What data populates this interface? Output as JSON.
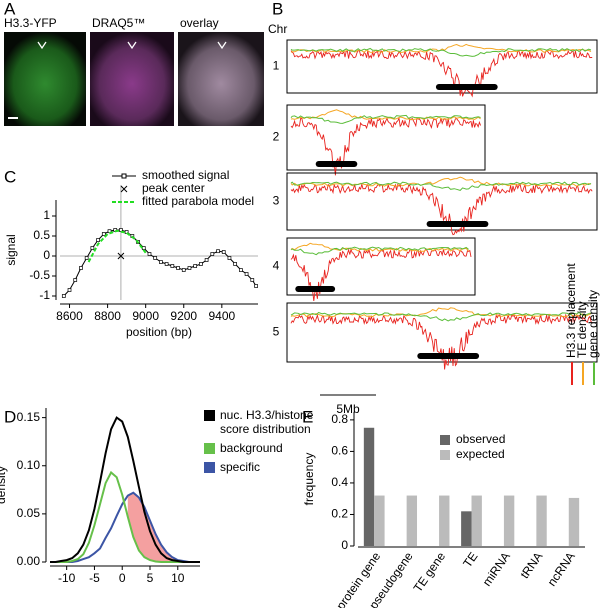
{
  "panel_a": {
    "label": "A",
    "channels": [
      "H3.3-YFP",
      "DRAQ5™",
      "overlay"
    ]
  },
  "panel_b": {
    "label": "B",
    "axis_label": "Chr",
    "chromosomes": [
      "1",
      "2",
      "3",
      "4",
      "5"
    ],
    "legend": [
      "H3.3 replacement",
      "TE density",
      "gene density"
    ],
    "scale": "5Mb"
  },
  "chart_data": [
    {
      "type": "line",
      "panel": "C",
      "xlabel": "position (bp)",
      "ylabel": "signal",
      "xlim": [
        8550,
        9590
      ],
      "ylim": [
        -1.1,
        1.4
      ],
      "xticks": [
        8600,
        8800,
        9000,
        9200,
        9400
      ],
      "yticks": [
        -1,
        -0.5,
        0,
        0.5,
        1
      ],
      "series": [
        {
          "name": "smoothed signal",
          "color": "#000000",
          "marker": "square",
          "x": [
            8570,
            8600,
            8630,
            8660,
            8690,
            8720,
            8750,
            8780,
            8810,
            8840,
            8870,
            8900,
            8930,
            8960,
            8990,
            9020,
            9050,
            9080,
            9110,
            9140,
            9170,
            9200,
            9230,
            9260,
            9290,
            9320,
            9350,
            9380,
            9410,
            9440,
            9470,
            9500,
            9530,
            9560,
            9580
          ],
          "values": [
            -1.0,
            -0.85,
            -0.6,
            -0.3,
            -0.05,
            0.2,
            0.4,
            0.55,
            0.62,
            0.65,
            0.65,
            0.6,
            0.5,
            0.35,
            0.2,
            0.05,
            -0.05,
            -0.15,
            -0.2,
            -0.25,
            -0.3,
            -0.35,
            -0.3,
            -0.25,
            -0.2,
            -0.1,
            0.05,
            0.12,
            0.1,
            -0.05,
            -0.2,
            -0.35,
            -0.45,
            -0.6,
            -0.75
          ]
        },
        {
          "name": "peak center",
          "color": "#000000",
          "marker": "x",
          "x": [
            8870
          ],
          "values": [
            0
          ]
        },
        {
          "name": "fitted parabola model",
          "color": "#22dd22",
          "marker": "dash",
          "x": [
            8700,
            8750,
            8800,
            8850,
            8900,
            8950,
            9000
          ],
          "values": [
            -0.15,
            0.3,
            0.55,
            0.63,
            0.58,
            0.4,
            0.08
          ]
        }
      ]
    },
    {
      "type": "density",
      "panel": "D",
      "ylabel": "density",
      "xlim": [
        -13,
        14
      ],
      "ylim": [
        0,
        0.16
      ],
      "xticks": [
        -10,
        -5,
        0,
        5,
        10
      ],
      "yticks": [
        {
          "value": 0,
          "label": "0.00"
        },
        {
          "value": 0.05,
          "label": "0.05"
        },
        {
          "value": 0.1,
          "label": "0.10"
        },
        {
          "value": 0.15,
          "label": "0.15"
        }
      ],
      "x": [
        -13,
        -12,
        -11,
        -10,
        -9,
        -8,
        -7,
        -6,
        -5,
        -4,
        -3,
        -2,
        -1,
        0,
        1,
        2,
        3,
        4,
        5,
        6,
        7,
        8,
        9,
        10,
        11,
        12,
        13,
        14
      ],
      "series": [
        {
          "name": "nuc. H3.3/histone score distribution",
          "color": "#000000",
          "values": [
            0,
            0,
            0.001,
            0.002,
            0.004,
            0.009,
            0.018,
            0.033,
            0.055,
            0.083,
            0.113,
            0.138,
            0.15,
            0.146,
            0.13,
            0.105,
            0.078,
            0.052,
            0.032,
            0.018,
            0.009,
            0.004,
            0.002,
            0.001,
            0,
            0,
            0,
            0
          ]
        },
        {
          "name": "background",
          "color": "#66c04a",
          "values": [
            0,
            0,
            0,
            0,
            0.001,
            0.003,
            0.008,
            0.02,
            0.038,
            0.06,
            0.082,
            0.093,
            0.088,
            0.07,
            0.047,
            0.026,
            0.012,
            0.005,
            0.002,
            0.0005,
            0,
            0,
            0,
            0,
            0,
            0,
            0,
            0
          ]
        },
        {
          "name": "specific",
          "color": "#3c55a5",
          "values": [
            0,
            0,
            0,
            0,
            0,
            0.001,
            0.003,
            0.005,
            0.009,
            0.014,
            0.025,
            0.035,
            0.048,
            0.06,
            0.069,
            0.072,
            0.067,
            0.057,
            0.043,
            0.029,
            0.018,
            0.01,
            0.005,
            0.002,
            0.001,
            0,
            0,
            0
          ]
        }
      ]
    },
    {
      "type": "bar",
      "panel": "E",
      "ylabel": "frequency",
      "ylim": [
        0,
        0.85
      ],
      "yticks": [
        0,
        0.2,
        0.4,
        0.6,
        0.8
      ],
      "categories": [
        "protein gene",
        "pseudogene",
        "TE gene",
        "TE",
        "miRNA",
        "tRNA",
        "ncRNA"
      ],
      "series": [
        {
          "name": "observed",
          "color": "#666666",
          "values": [
            0.75,
            0,
            0,
            0.22,
            0,
            0,
            0
          ]
        },
        {
          "name": "expected",
          "color": "#bbbbbb",
          "values": [
            0.32,
            0.32,
            0.32,
            0.32,
            0.32,
            0.32,
            0.305
          ]
        }
      ]
    }
  ]
}
